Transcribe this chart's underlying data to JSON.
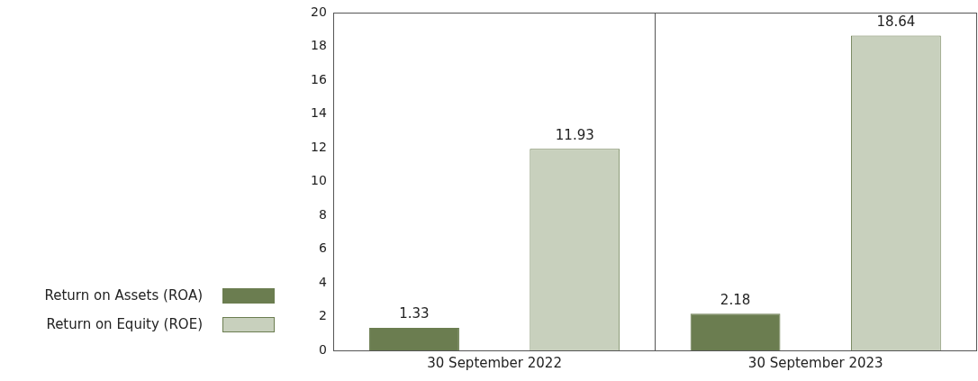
{
  "chart_data": {
    "type": "bar",
    "categories": [
      "30 September 2022",
      "30 September 2023"
    ],
    "series": [
      {
        "name": "Return on Assets (ROA)",
        "color": "#6b7d50",
        "values": [
          1.33,
          2.18
        ]
      },
      {
        "name": "Return on Equity (ROE)",
        "color": "#c8d0bd",
        "values": [
          11.93,
          18.64
        ]
      }
    ],
    "ylim": [
      0,
      20
    ],
    "yticks": [
      0,
      2,
      4,
      6,
      8,
      10,
      12,
      14,
      16,
      18,
      20
    ],
    "grid": "x",
    "legend": "left",
    "data_labels": true
  }
}
